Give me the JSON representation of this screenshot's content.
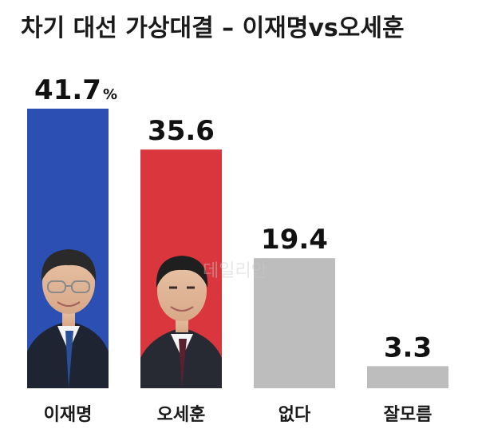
{
  "title": "차기 대선 가상대결 – 이재명vs오세훈",
  "watermark": "데일리안",
  "chart_data": {
    "type": "bar",
    "title": "차기 대선 가상대결 – 이재명vs오세훈",
    "categories": [
      "이재명",
      "오세훈",
      "없다",
      "잘모름"
    ],
    "values": [
      41.7,
      35.6,
      19.4,
      3.3
    ],
    "value_labels": [
      "41.7",
      "35.6",
      "19.4",
      "3.3"
    ],
    "unit": "%",
    "colors": [
      "#2b4fb3",
      "#d9363e",
      "#bdbdbd",
      "#bdbdbd"
    ],
    "xlabel": "",
    "ylabel": "",
    "ylim": [
      0,
      41.7
    ],
    "grid": false
  }
}
